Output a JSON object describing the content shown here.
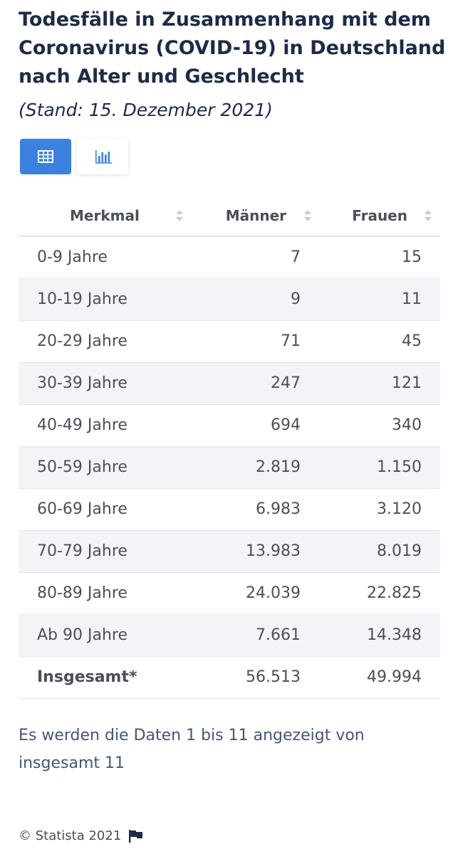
{
  "title": "Todesfälle in Zusammenhang mit dem Coronavirus (COVID-19) in Deutschland nach Alter und Geschlecht",
  "subtitle": "(Stand: 15. Dezember 2021)",
  "view_toggle": {
    "active": "table",
    "table_icon": "table-icon",
    "chart_icon": "bar-chart-icon"
  },
  "colors": {
    "accent": "#3b82e0",
    "title": "#1c2b4a",
    "text": "#4a4f5a",
    "stripe": "#f3f4f7"
  },
  "chart_data": {
    "type": "table",
    "columns": [
      "Merkmal",
      "Männer",
      "Frauen"
    ],
    "rows": [
      [
        "0-9 Jahre",
        "7",
        "15"
      ],
      [
        "10-19 Jahre",
        "9",
        "11"
      ],
      [
        "20-29 Jahre",
        "71",
        "45"
      ],
      [
        "30-39 Jahre",
        "247",
        "121"
      ],
      [
        "40-49 Jahre",
        "694",
        "340"
      ],
      [
        "50-59 Jahre",
        "2.819",
        "1.150"
      ],
      [
        "60-69 Jahre",
        "6.983",
        "3.120"
      ],
      [
        "70-79 Jahre",
        "13.983",
        "8.019"
      ],
      [
        "80-89 Jahre",
        "24.039",
        "22.825"
      ],
      [
        "Ab 90 Jahre",
        "7.661",
        "14.348"
      ],
      [
        "Insgesamt*",
        "56.513",
        "49.994"
      ]
    ]
  },
  "pagination_info": "Es werden die Daten 1 bis 11 angezeigt von insgesamt 11",
  "credit": "© Statista 2021"
}
